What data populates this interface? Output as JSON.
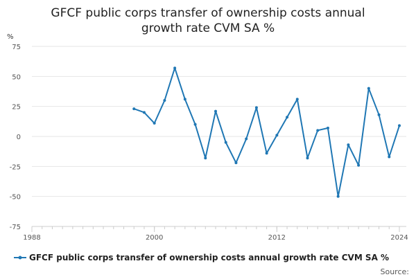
{
  "chart_data": {
    "type": "line",
    "title_lines": [
      "GFCF public corps transfer of ownership costs annual",
      "growth rate CVM SA %"
    ],
    "ylabel": "%",
    "ylim": [
      -75,
      75
    ],
    "yticks": [
      75,
      50,
      25,
      0,
      -25,
      -50,
      -75
    ],
    "xlim": [
      1988,
      2024
    ],
    "xticks": [
      1988,
      2000,
      2012,
      2024
    ],
    "grid": true,
    "legend_position": "bottom",
    "series": [
      {
        "name": "GFCF public corps transfer of ownership costs annual growth rate CVM SA %",
        "color": "#1f77b4",
        "x": [
          1998,
          1999,
          2000,
          2001,
          2002,
          2003,
          2004,
          2005,
          2006,
          2007,
          2008,
          2009,
          2010,
          2011,
          2012,
          2013,
          2014,
          2015,
          2016,
          2017,
          2018,
          2019,
          2020,
          2021,
          2022,
          2023,
          2024
        ],
        "values": [
          23,
          20,
          11,
          30,
          57,
          31,
          10,
          -18,
          21,
          -5,
          -22,
          -2,
          24,
          -14,
          1,
          16,
          31,
          -18,
          5,
          7,
          -50,
          -7,
          -24,
          40,
          18,
          -17,
          9
        ]
      }
    ]
  },
  "source_label": "Source:"
}
